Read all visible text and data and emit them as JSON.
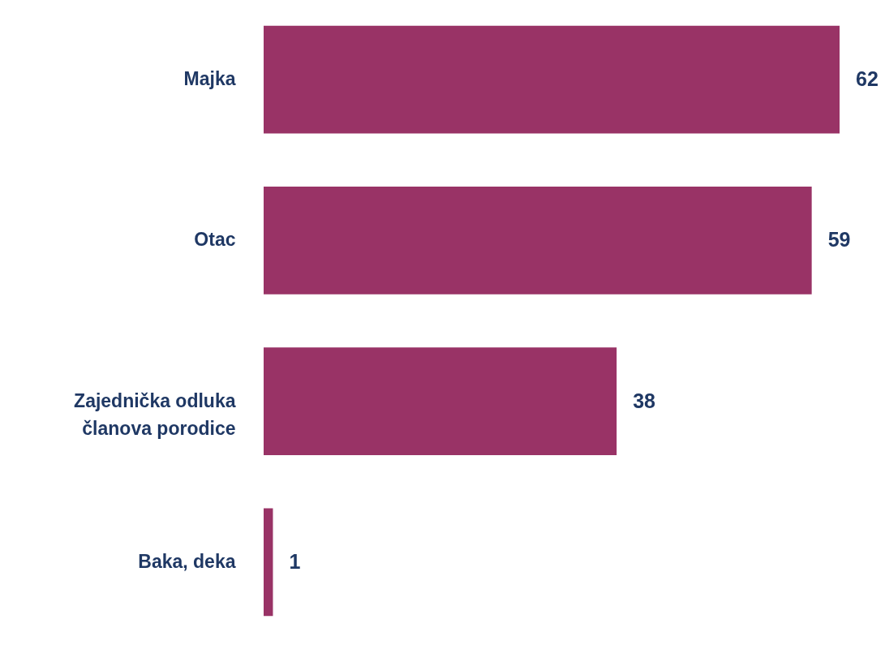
{
  "chart_data": {
    "type": "bar",
    "orientation": "horizontal",
    "categories": [
      "Majka",
      "Otac",
      "Zajednička odluka\nčlanova porodice",
      "Baka, deka"
    ],
    "values": [
      62,
      59,
      38,
      1
    ],
    "color": "#993366",
    "data_labels": true
  }
}
